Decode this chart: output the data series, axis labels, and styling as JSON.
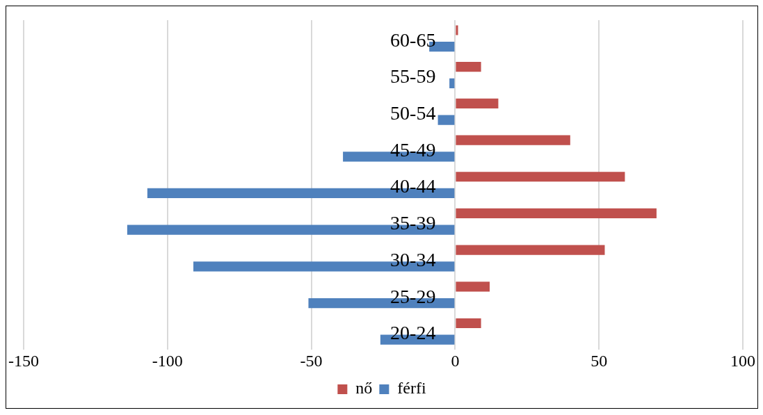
{
  "chart_data": {
    "type": "bar",
    "orientation": "horizontal",
    "categories": [
      "60-65",
      "55-59",
      "50-54",
      "45-49",
      "40-44",
      "35-39",
      "30-34",
      "25-29",
      "20-24"
    ],
    "series": [
      {
        "name": "nő",
        "color": "#c0504d",
        "values": [
          1,
          9,
          15,
          40,
          59,
          70,
          52,
          12,
          9
        ]
      },
      {
        "name": "férfi",
        "color": "#4f81bd",
        "values": [
          -9,
          -2,
          -6,
          -39,
          -107,
          -114,
          -91,
          -51,
          -26
        ]
      }
    ],
    "xlim": [
      -150,
      100
    ],
    "xticks": [
      -150,
      -100,
      -50,
      0,
      50,
      100
    ],
    "grid": "x",
    "legend": "bottom"
  }
}
